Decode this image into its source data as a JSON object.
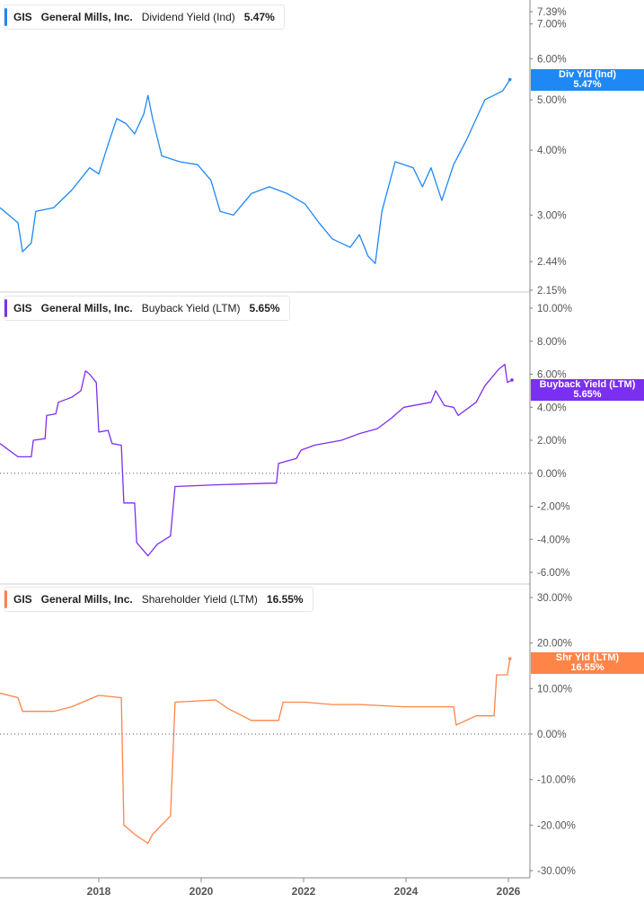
{
  "chart_data": [
    {
      "type": "line",
      "legend": {
        "ticker": "GIS",
        "company": "General Mills, Inc.",
        "metric": "Dividend Yield (Ind)",
        "value": "5.47%"
      },
      "badge": {
        "label": "Div Yld (Ind)",
        "value": "5.47%"
      },
      "color": "#1e88f5",
      "scale": "log",
      "ylim": [
        2.15,
        7.39
      ],
      "ytick_values": [
        7.39,
        7.0,
        6.0,
        5.0,
        4.0,
        3.0,
        2.44,
        2.15
      ],
      "ytick_labels": [
        "7.39%",
        "7.00%",
        "6.00%",
        "5.00%",
        "4.00%",
        "3.00%",
        "2.44%",
        "2.15%"
      ],
      "points": [
        [
          2016.07,
          3.1
        ],
        [
          2016.42,
          2.9
        ],
        [
          2016.51,
          2.55
        ],
        [
          2016.68,
          2.65
        ],
        [
          2016.77,
          3.05
        ],
        [
          2017.12,
          3.1
        ],
        [
          2017.47,
          3.35
        ],
        [
          2017.82,
          3.7
        ],
        [
          2018.0,
          3.6
        ],
        [
          2018.18,
          4.1
        ],
        [
          2018.35,
          4.6
        ],
        [
          2018.53,
          4.5
        ],
        [
          2018.7,
          4.3
        ],
        [
          2018.88,
          4.7
        ],
        [
          2018.96,
          5.1
        ],
        [
          2019.05,
          4.6
        ],
        [
          2019.23,
          3.9
        ],
        [
          2019.58,
          3.8
        ],
        [
          2019.93,
          3.75
        ],
        [
          2020.19,
          3.5
        ],
        [
          2020.37,
          3.05
        ],
        [
          2020.63,
          3.0
        ],
        [
          2020.98,
          3.3
        ],
        [
          2021.33,
          3.4
        ],
        [
          2021.68,
          3.3
        ],
        [
          2022.03,
          3.15
        ],
        [
          2022.3,
          2.9
        ],
        [
          2022.56,
          2.7
        ],
        [
          2022.91,
          2.6
        ],
        [
          2023.09,
          2.75
        ],
        [
          2023.26,
          2.5
        ],
        [
          2023.4,
          2.42
        ],
        [
          2023.53,
          3.05
        ],
        [
          2023.79,
          3.8
        ],
        [
          2024.14,
          3.7
        ],
        [
          2024.32,
          3.4
        ],
        [
          2024.49,
          3.7
        ],
        [
          2024.7,
          3.2
        ],
        [
          2024.93,
          3.75
        ],
        [
          2025.19,
          4.2
        ],
        [
          2025.54,
          5.0
        ],
        [
          2025.89,
          5.2
        ],
        [
          2026.03,
          5.47
        ]
      ]
    },
    {
      "type": "line",
      "legend": {
        "ticker": "GIS",
        "company": "General Mills, Inc.",
        "metric": "Buyback Yield (LTM)",
        "value": "5.65%"
      },
      "badge": {
        "label": "Buyback Yield (LTM)",
        "value": "5.65%"
      },
      "color": "#7b2ff0",
      "scale": "linear",
      "ylim": [
        -6,
        10
      ],
      "zero_line": true,
      "ytick_values": [
        10,
        8,
        6,
        4,
        2,
        0,
        -2,
        -4,
        -6
      ],
      "ytick_labels": [
        "10.00%",
        "8.00%",
        "6.00%",
        "4.00%",
        "2.00%",
        "0.00%",
        "-2.00%",
        "-4.00%",
        "-6.00%"
      ],
      "points": [
        [
          2016.07,
          1.8
        ],
        [
          2016.42,
          1.0
        ],
        [
          2016.68,
          1.0
        ],
        [
          2016.72,
          2.0
        ],
        [
          2016.95,
          2.1
        ],
        [
          2016.98,
          3.5
        ],
        [
          2017.16,
          3.6
        ],
        [
          2017.21,
          4.3
        ],
        [
          2017.47,
          4.6
        ],
        [
          2017.65,
          5.0
        ],
        [
          2017.74,
          6.2
        ],
        [
          2017.82,
          6.0
        ],
        [
          2017.95,
          5.5
        ],
        [
          2018.0,
          2.5
        ],
        [
          2018.18,
          2.6
        ],
        [
          2018.26,
          1.8
        ],
        [
          2018.44,
          1.7
        ],
        [
          2018.49,
          -1.8
        ],
        [
          2018.7,
          -1.8
        ],
        [
          2018.74,
          -4.2
        ],
        [
          2018.96,
          -5.0
        ],
        [
          2019.14,
          -4.3
        ],
        [
          2019.4,
          -3.8
        ],
        [
          2019.49,
          -0.8
        ],
        [
          2020.28,
          -0.7
        ],
        [
          2021.33,
          -0.6
        ],
        [
          2021.47,
          -0.6
        ],
        [
          2021.51,
          0.6
        ],
        [
          2021.86,
          0.9
        ],
        [
          2021.95,
          1.4
        ],
        [
          2022.21,
          1.7
        ],
        [
          2022.74,
          2.0
        ],
        [
          2023.09,
          2.4
        ],
        [
          2023.44,
          2.7
        ],
        [
          2023.7,
          3.3
        ],
        [
          2023.96,
          4.0
        ],
        [
          2024.49,
          4.3
        ],
        [
          2024.58,
          5.0
        ],
        [
          2024.75,
          4.1
        ],
        [
          2024.93,
          4.0
        ],
        [
          2025.02,
          3.5
        ],
        [
          2025.37,
          4.3
        ],
        [
          2025.54,
          5.3
        ],
        [
          2025.81,
          6.3
        ],
        [
          2025.93,
          6.6
        ],
        [
          2025.98,
          5.5
        ],
        [
          2026.07,
          5.65
        ]
      ]
    },
    {
      "type": "line",
      "legend": {
        "ticker": "GIS",
        "company": "General Mills, Inc.",
        "metric": "Shareholder Yield (LTM)",
        "value": "16.55%"
      },
      "badge": {
        "label": "Shr Yld (LTM)",
        "value": "16.55%"
      },
      "color": "#ff8447",
      "scale": "linear",
      "ylim": [
        -30,
        30
      ],
      "zero_line": true,
      "ytick_values": [
        30,
        20,
        10,
        0,
        -10,
        -20,
        -30
      ],
      "ytick_labels": [
        "30.00%",
        "20.00%",
        "10.00%",
        "0.00%",
        "-10.00%",
        "-20.00%",
        "-30.00%"
      ],
      "points": [
        [
          2016.07,
          9
        ],
        [
          2016.42,
          8
        ],
        [
          2016.51,
          5
        ],
        [
          2017.12,
          5
        ],
        [
          2017.47,
          6
        ],
        [
          2018.0,
          8.5
        ],
        [
          2018.44,
          8
        ],
        [
          2018.49,
          -20
        ],
        [
          2018.7,
          -22
        ],
        [
          2018.96,
          -24
        ],
        [
          2019.05,
          -22
        ],
        [
          2019.4,
          -18
        ],
        [
          2019.49,
          7
        ],
        [
          2020.28,
          7.5
        ],
        [
          2020.54,
          5.5
        ],
        [
          2020.98,
          3
        ],
        [
          2021.51,
          3
        ],
        [
          2021.6,
          7
        ],
        [
          2022.03,
          7
        ],
        [
          2022.56,
          6.5
        ],
        [
          2023.09,
          6.5
        ],
        [
          2023.96,
          6
        ],
        [
          2024.93,
          6
        ],
        [
          2024.98,
          2
        ],
        [
          2025.37,
          4
        ],
        [
          2025.72,
          4
        ],
        [
          2025.77,
          13
        ],
        [
          2025.98,
          13
        ],
        [
          2026.03,
          16.55
        ]
      ]
    }
  ],
  "x_axis": {
    "tick_values": [
      2018,
      2020,
      2022,
      2024,
      2026
    ],
    "tick_labels": [
      "2018",
      "2020",
      "2022",
      "2024",
      "2026"
    ],
    "xlim": [
      2016.07,
      2026.42
    ]
  }
}
